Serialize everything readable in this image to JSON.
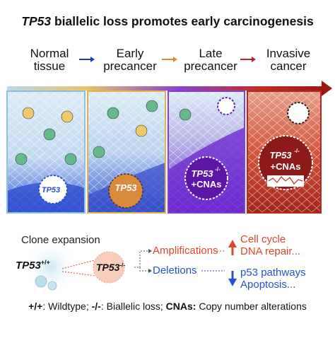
{
  "title": {
    "gene": "TP53",
    "rest": " biallelic loss promotes early carcinogenesis"
  },
  "stages": [
    {
      "line1": "Normal",
      "line2": "tissue"
    },
    {
      "line1": "Early",
      "line2": "precancer"
    },
    {
      "line1": "Late",
      "line2": "precancer"
    },
    {
      "line1": "Invasive",
      "line2": "cancer"
    }
  ],
  "panels": {
    "p2_label": "TP53",
    "p3_label_gene": "TP53",
    "p3_label_sup": "-/-",
    "p3_label_extra": "+CNAs",
    "p4_label_gene": "TP53",
    "p4_label_sup": "-/-",
    "p4_label_extra": "+CNAs",
    "p1_label": "TP53"
  },
  "bottom": {
    "clone_expansion": "Clone expansion",
    "wt_gene": "TP53",
    "wt_sup": "+/+",
    "mut_gene": "TP53",
    "mut_sup": "-/-",
    "amplifications": "Amplifications",
    "deletions": "Deletions",
    "up_line1": "Cell cycle",
    "up_line2": "DNA repair...",
    "down_line1": "p53 pathways",
    "down_line2": "Apoptosis..."
  },
  "footer": {
    "k1": "+/+",
    "v1": ": Wildtype; ",
    "k2": "-/-",
    "v2": ": Biallelic loss; ",
    "k3": "CNAs:",
    "v3": " Copy number alterations"
  },
  "colors": {
    "arrow_blue": "#1f3fbf",
    "arrow_orange": "#e8882a",
    "arrow_red": "#b8281f",
    "amp_red": "#e0452a",
    "del_blue": "#2a4fd0",
    "purple": "#6a1fb0",
    "dark_red": "#8c1a1a"
  }
}
